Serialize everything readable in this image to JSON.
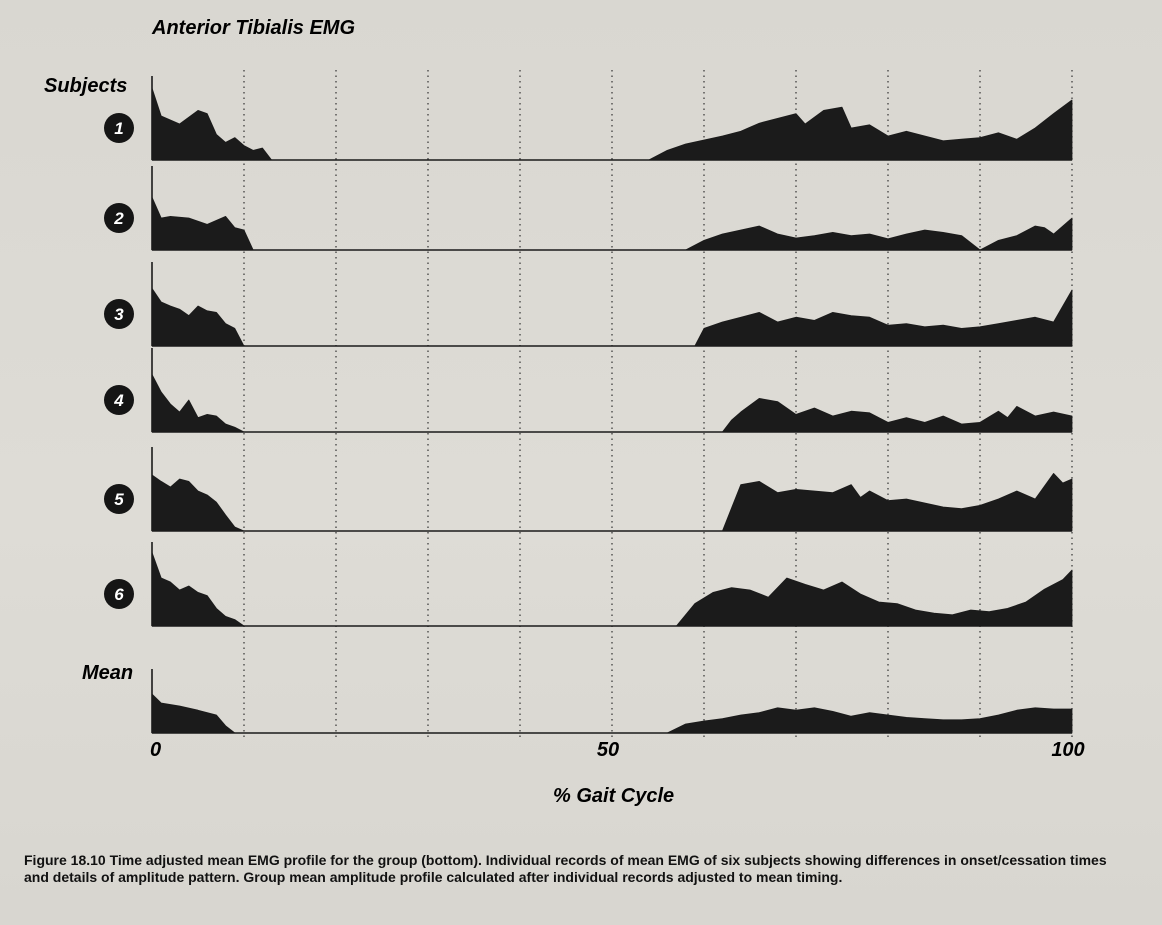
{
  "figure": {
    "caption": "Figure 18.10  Time adjusted mean EMG profile for the group (bottom). Individual records of mean EMG of six subjects showing differences in onset/cessation times and details of amplitude pattern. Group mean amplitude profile calculated after individual records adjusted to mean timing."
  },
  "chart_data": {
    "type": "area",
    "title": "Anterior Tibialis EMG",
    "xlabel": "% Gait Cycle",
    "ylabel": "",
    "rows_header": "Subjects",
    "xlim": [
      0,
      100
    ],
    "x_ticks": [
      {
        "value": 0,
        "label": "0"
      },
      {
        "value": 50,
        "label": "50"
      },
      {
        "value": 100,
        "label": "100"
      }
    ],
    "gridlines_x": [
      10,
      20,
      30,
      40,
      50,
      60,
      70,
      80,
      90,
      100
    ],
    "grid": "dotted vertical",
    "ylim": [
      0,
      1
    ],
    "series": [
      {
        "name": "1",
        "points": [
          [
            0,
            0.9
          ],
          [
            1,
            0.55
          ],
          [
            3,
            0.45
          ],
          [
            5,
            0.62
          ],
          [
            6,
            0.58
          ],
          [
            7,
            0.32
          ],
          [
            8,
            0.22
          ],
          [
            9,
            0.28
          ],
          [
            10,
            0.18
          ],
          [
            11,
            0.12
          ],
          [
            12,
            0.15
          ],
          [
            13,
            0
          ],
          [
            54,
            0
          ],
          [
            56,
            0.12
          ],
          [
            58,
            0.2
          ],
          [
            60,
            0.25
          ],
          [
            62,
            0.3
          ],
          [
            64,
            0.36
          ],
          [
            66,
            0.46
          ],
          [
            68,
            0.52
          ],
          [
            70,
            0.58
          ],
          [
            71,
            0.45
          ],
          [
            73,
            0.62
          ],
          [
            75,
            0.66
          ],
          [
            76,
            0.4
          ],
          [
            78,
            0.44
          ],
          [
            80,
            0.3
          ],
          [
            82,
            0.36
          ],
          [
            84,
            0.3
          ],
          [
            86,
            0.24
          ],
          [
            88,
            0.26
          ],
          [
            90,
            0.28
          ],
          [
            92,
            0.34
          ],
          [
            94,
            0.26
          ],
          [
            96,
            0.4
          ],
          [
            98,
            0.58
          ],
          [
            100,
            0.75
          ]
        ]
      },
      {
        "name": "2",
        "points": [
          [
            0,
            0.66
          ],
          [
            1,
            0.4
          ],
          [
            2,
            0.42
          ],
          [
            4,
            0.4
          ],
          [
            6,
            0.32
          ],
          [
            8,
            0.42
          ],
          [
            9,
            0.28
          ],
          [
            10,
            0.25
          ],
          [
            11,
            0
          ],
          [
            58,
            0
          ],
          [
            60,
            0.12
          ],
          [
            62,
            0.2
          ],
          [
            64,
            0.25
          ],
          [
            66,
            0.3
          ],
          [
            68,
            0.2
          ],
          [
            70,
            0.15
          ],
          [
            72,
            0.18
          ],
          [
            74,
            0.22
          ],
          [
            76,
            0.18
          ],
          [
            78,
            0.2
          ],
          [
            80,
            0.14
          ],
          [
            82,
            0.2
          ],
          [
            84,
            0.25
          ],
          [
            86,
            0.22
          ],
          [
            88,
            0.18
          ],
          [
            90,
            0
          ],
          [
            92,
            0.12
          ],
          [
            94,
            0.18
          ],
          [
            96,
            0.3
          ],
          [
            97,
            0.28
          ],
          [
            98,
            0.2
          ],
          [
            100,
            0.4
          ]
        ]
      },
      {
        "name": "3",
        "points": [
          [
            0,
            0.72
          ],
          [
            1,
            0.55
          ],
          [
            2,
            0.5
          ],
          [
            3,
            0.46
          ],
          [
            4,
            0.38
          ],
          [
            5,
            0.5
          ],
          [
            6,
            0.44
          ],
          [
            7,
            0.42
          ],
          [
            8,
            0.28
          ],
          [
            9,
            0.22
          ],
          [
            10,
            0
          ],
          [
            59,
            0
          ],
          [
            60,
            0.22
          ],
          [
            62,
            0.3
          ],
          [
            64,
            0.36
          ],
          [
            66,
            0.42
          ],
          [
            68,
            0.3
          ],
          [
            70,
            0.36
          ],
          [
            72,
            0.32
          ],
          [
            74,
            0.42
          ],
          [
            76,
            0.38
          ],
          [
            78,
            0.36
          ],
          [
            80,
            0.26
          ],
          [
            82,
            0.28
          ],
          [
            84,
            0.24
          ],
          [
            86,
            0.26
          ],
          [
            88,
            0.22
          ],
          [
            90,
            0.24
          ],
          [
            92,
            0.28
          ],
          [
            94,
            0.32
          ],
          [
            96,
            0.36
          ],
          [
            98,
            0.3
          ],
          [
            100,
            0.7
          ]
        ]
      },
      {
        "name": "4",
        "points": [
          [
            0,
            0.72
          ],
          [
            1,
            0.5
          ],
          [
            2,
            0.35
          ],
          [
            3,
            0.25
          ],
          [
            4,
            0.4
          ],
          [
            5,
            0.18
          ],
          [
            6,
            0.22
          ],
          [
            7,
            0.2
          ],
          [
            8,
            0.1
          ],
          [
            9,
            0.06
          ],
          [
            10,
            0
          ],
          [
            62,
            0
          ],
          [
            63,
            0.15
          ],
          [
            64,
            0.25
          ],
          [
            66,
            0.42
          ],
          [
            68,
            0.38
          ],
          [
            70,
            0.22
          ],
          [
            72,
            0.3
          ],
          [
            74,
            0.2
          ],
          [
            76,
            0.26
          ],
          [
            78,
            0.24
          ],
          [
            80,
            0.12
          ],
          [
            82,
            0.18
          ],
          [
            84,
            0.12
          ],
          [
            86,
            0.2
          ],
          [
            88,
            0.1
          ],
          [
            90,
            0.12
          ],
          [
            92,
            0.26
          ],
          [
            93,
            0.18
          ],
          [
            94,
            0.32
          ],
          [
            96,
            0.2
          ],
          [
            98,
            0.25
          ],
          [
            100,
            0.2
          ]
        ]
      },
      {
        "name": "5",
        "points": [
          [
            0,
            0.7
          ],
          [
            1,
            0.62
          ],
          [
            2,
            0.55
          ],
          [
            3,
            0.65
          ],
          [
            4,
            0.62
          ],
          [
            5,
            0.5
          ],
          [
            6,
            0.45
          ],
          [
            7,
            0.36
          ],
          [
            8,
            0.2
          ],
          [
            9,
            0.05
          ],
          [
            10,
            0
          ],
          [
            62,
            0
          ],
          [
            64,
            0.58
          ],
          [
            66,
            0.62
          ],
          [
            68,
            0.48
          ],
          [
            70,
            0.52
          ],
          [
            72,
            0.5
          ],
          [
            74,
            0.48
          ],
          [
            76,
            0.58
          ],
          [
            77,
            0.42
          ],
          [
            78,
            0.5
          ],
          [
            80,
            0.38
          ],
          [
            82,
            0.4
          ],
          [
            84,
            0.35
          ],
          [
            86,
            0.3
          ],
          [
            88,
            0.28
          ],
          [
            90,
            0.32
          ],
          [
            92,
            0.4
          ],
          [
            94,
            0.5
          ],
          [
            96,
            0.4
          ],
          [
            98,
            0.72
          ],
          [
            99,
            0.6
          ],
          [
            100,
            0.65
          ]
        ]
      },
      {
        "name": "6",
        "points": [
          [
            0,
            0.92
          ],
          [
            1,
            0.6
          ],
          [
            2,
            0.55
          ],
          [
            3,
            0.45
          ],
          [
            4,
            0.5
          ],
          [
            5,
            0.42
          ],
          [
            6,
            0.38
          ],
          [
            7,
            0.22
          ],
          [
            8,
            0.12
          ],
          [
            9,
            0.08
          ],
          [
            10,
            0
          ],
          [
            57,
            0
          ],
          [
            59,
            0.28
          ],
          [
            61,
            0.42
          ],
          [
            63,
            0.48
          ],
          [
            65,
            0.45
          ],
          [
            67,
            0.36
          ],
          [
            69,
            0.6
          ],
          [
            71,
            0.52
          ],
          [
            73,
            0.45
          ],
          [
            75,
            0.55
          ],
          [
            77,
            0.4
          ],
          [
            79,
            0.3
          ],
          [
            81,
            0.28
          ],
          [
            83,
            0.2
          ],
          [
            85,
            0.16
          ],
          [
            87,
            0.14
          ],
          [
            89,
            0.2
          ],
          [
            91,
            0.18
          ],
          [
            93,
            0.22
          ],
          [
            95,
            0.3
          ],
          [
            97,
            0.46
          ],
          [
            99,
            0.58
          ],
          [
            100,
            0.7
          ]
        ]
      },
      {
        "name": "Mean",
        "points": [
          [
            0,
            0.65
          ],
          [
            1,
            0.5
          ],
          [
            3,
            0.45
          ],
          [
            5,
            0.38
          ],
          [
            7,
            0.3
          ],
          [
            8,
            0.12
          ],
          [
            9,
            0
          ],
          [
            56,
            0
          ],
          [
            58,
            0.15
          ],
          [
            60,
            0.2
          ],
          [
            62,
            0.24
          ],
          [
            64,
            0.3
          ],
          [
            66,
            0.34
          ],
          [
            68,
            0.42
          ],
          [
            70,
            0.38
          ],
          [
            72,
            0.42
          ],
          [
            74,
            0.36
          ],
          [
            76,
            0.28
          ],
          [
            78,
            0.34
          ],
          [
            80,
            0.3
          ],
          [
            82,
            0.26
          ],
          [
            84,
            0.24
          ],
          [
            86,
            0.22
          ],
          [
            88,
            0.22
          ],
          [
            90,
            0.24
          ],
          [
            92,
            0.3
          ],
          [
            94,
            0.38
          ],
          [
            96,
            0.42
          ],
          [
            98,
            0.4
          ],
          [
            100,
            0.4
          ]
        ]
      }
    ]
  }
}
